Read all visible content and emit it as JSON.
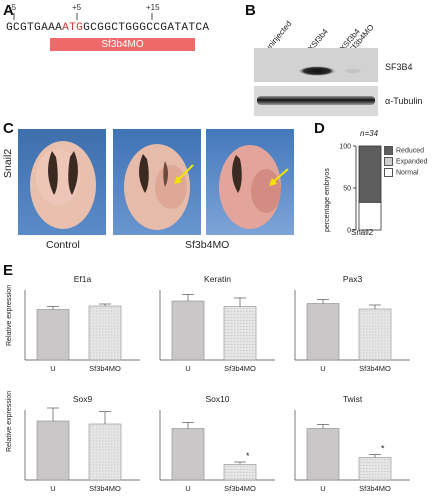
{
  "panels": {
    "a": "A",
    "b": "B",
    "c": "C",
    "d": "D",
    "e": "E"
  },
  "panel_a": {
    "positions": [
      "-5",
      "+5",
      "+15"
    ],
    "seq_pre": "GCGTGAAA",
    "seq_atg": "ATG",
    "seq_post": "GCGGCTGGGCCGATATCA",
    "morpholino": "Sf3b4MO"
  },
  "panel_b": {
    "lanes": [
      "uninjected",
      "XSf3b4",
      "XSf3b4 +Sf3b4MO"
    ],
    "bands": [
      "SF3B4",
      "α-Tubulin"
    ]
  },
  "panel_c": {
    "row_label": "Snail2",
    "captions": [
      "Control",
      "Sf3b4MO"
    ]
  },
  "panel_d": {
    "n_label": "n=34",
    "ylabel": "percentage embryos",
    "xlabel": "Snail2",
    "yticks": [
      "0",
      "50",
      "100"
    ],
    "legend": [
      "Reduced",
      "Expanded",
      "Normal"
    ]
  },
  "chart_data": {
    "type": "bar",
    "ylabel": "percentage embryos",
    "categories": [
      "Snail2"
    ],
    "ylim": [
      0,
      100
    ],
    "series": [
      {
        "name": "Normal",
        "values": [
          33
        ],
        "color": "#ffffff"
      },
      {
        "name": "Expanded",
        "values": [
          0
        ],
        "color": "#cfcfcf"
      },
      {
        "name": "Reduced",
        "values": [
          67
        ],
        "color": "#5d5d5d"
      }
    ]
  },
  "panel_e": {
    "ylabel": "Relative expression",
    "categories": [
      "U",
      "Sf3b4MO"
    ],
    "charts": [
      {
        "title": "Ef1a",
        "values": [
          101,
          108
        ],
        "errors": [
          6,
          4
        ],
        "sig": ""
      },
      {
        "title": "Keratin",
        "values": [
          118,
          107
        ],
        "errors": [
          13,
          17
        ],
        "sig": ""
      },
      {
        "title": "Pax3",
        "values": [
          113,
          102
        ],
        "errors": [
          8,
          8
        ],
        "sig": ""
      },
      {
        "title": "Sox9",
        "values": [
          118,
          112
        ],
        "errors": [
          26,
          25
        ],
        "sig": ""
      },
      {
        "title": "Sox10",
        "values": [
          103,
          31
        ],
        "errors": [
          12,
          5
        ],
        "sig": "*"
      },
      {
        "title": "Twist",
        "values": [
          103,
          45
        ],
        "errors": [
          8,
          6
        ],
        "sig": "*"
      }
    ]
  }
}
